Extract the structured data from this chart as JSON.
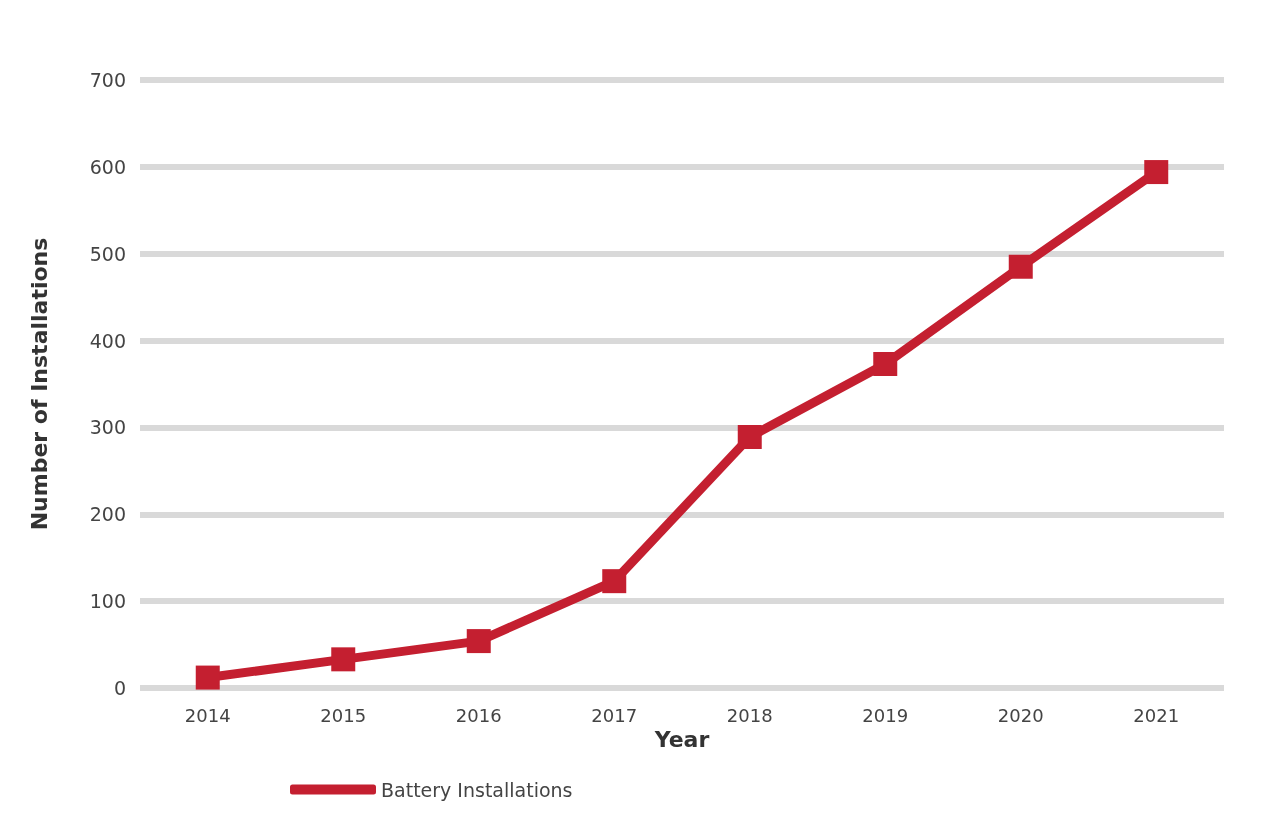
{
  "chart_data": {
    "type": "line",
    "xlabel": "Year",
    "ylabel": "Number of Installations",
    "categories": [
      "2014",
      "2015",
      "2016",
      "2017",
      "2018",
      "2019",
      "2020",
      "2021"
    ],
    "series": [
      {
        "name": "Battery Installations",
        "color": "#c41f30",
        "values": [
          12,
          33,
          54,
          123,
          289,
          373,
          485,
          594
        ]
      }
    ],
    "ylim": [
      0,
      700
    ],
    "yticks": [
      0,
      100,
      200,
      300,
      400,
      500,
      600,
      700
    ],
    "grid": "y",
    "legend": "bottom left",
    "marker": "square",
    "line_style": "solid"
  }
}
